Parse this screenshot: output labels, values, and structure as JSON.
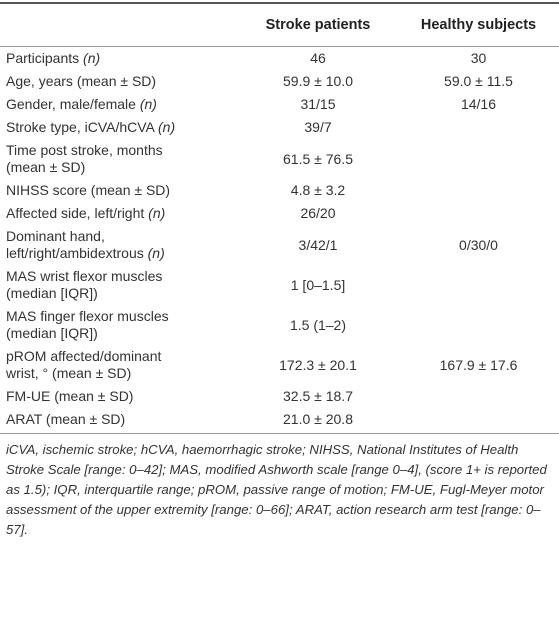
{
  "table": {
    "header": [
      "",
      "Stroke patients",
      "Healthy subjects"
    ],
    "rows": [
      {
        "label": [
          "Participants"
        ],
        "label_italic": "(n)",
        "cells": [
          "46",
          "30"
        ]
      },
      {
        "label": [
          "Age, years (mean ± SD)"
        ],
        "cells": [
          "59.9 ± 10.0",
          "59.0 ± 11.5"
        ]
      },
      {
        "label": [
          "Gender, male/female"
        ],
        "label_italic": "(n)",
        "cells": [
          "31/15",
          "14/16"
        ]
      },
      {
        "label": [
          "Stroke type, iCVA/hCVA"
        ],
        "label_italic": "(n)",
        "cells": [
          "39/7",
          ""
        ]
      },
      {
        "label": [
          "Time post stroke, months",
          "(mean ± SD)"
        ],
        "cells": [
          "61.5 ± 76.5",
          ""
        ]
      },
      {
        "label": [
          "NIHSS score (mean ± SD)"
        ],
        "cells": [
          "4.8 ± 3.2",
          ""
        ]
      },
      {
        "label": [
          "Affected side, left/right"
        ],
        "label_italic": "(n)",
        "cells": [
          "26/20",
          ""
        ]
      },
      {
        "label": [
          "Dominant hand,",
          "left/right/ambidextrous"
        ],
        "label_italic": "(n)",
        "cells": [
          "3/42/1",
          "0/30/0"
        ]
      },
      {
        "label": [
          "MAS wrist flexor muscles",
          "(median [IQR])"
        ],
        "cells": [
          "1 [0–1.5]",
          ""
        ]
      },
      {
        "label": [
          "MAS finger flexor muscles",
          "(median [IQR])"
        ],
        "cells": [
          "1.5 (1–2)",
          ""
        ]
      },
      {
        "label": [
          "pROM affected/dominant",
          "wrist, ° (mean ± SD)"
        ],
        "cells": [
          "172.3 ± 20.1",
          "167.9 ± 17.6"
        ]
      },
      {
        "label": [
          "FM-UE (mean ± SD)"
        ],
        "cells": [
          "32.5 ± 18.7",
          ""
        ]
      },
      {
        "label": [
          "ARAT (mean ± SD)"
        ],
        "cells": [
          "21.0 ± 20.8",
          ""
        ]
      }
    ],
    "footnote": "iCVA, ischemic stroke; hCVA, haemorrhagic stroke; NIHSS, National Institutes of Health Stroke Scale [range: 0–42]; MAS, modified Ashworth scale [range 0–4], (score 1+ is reported as 1.5); IQR, interquartile range; pROM, passive range of motion; FM-UE, Fugl-Meyer motor assessment of the upper extremity [range: 0–66]; ARAT, action research arm test [range: 0–57]."
  }
}
